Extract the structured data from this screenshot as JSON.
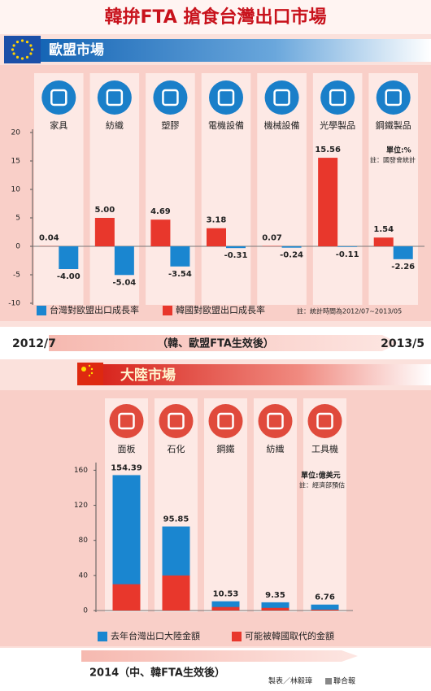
{
  "title": "韓拚FTA  搶食台灣出口市場",
  "chart_data": [
    {
      "type": "grouped_bar",
      "title": "歐盟市場",
      "categories": [
        "家具",
        "紡織",
        "塑膠",
        "電機設備",
        "機械設備",
        "光學製品",
        "鋼鐵製品"
      ],
      "series": [
        {
          "name": "台灣對歐盟出口成長率",
          "color": "#1a86d0",
          "values": [
            -4.0,
            -5.04,
            -3.54,
            -0.31,
            -0.24,
            -0.11,
            -2.26
          ],
          "value_labels": [
            "-4.00",
            "-5.04",
            "-3.54",
            "-0.31",
            "-0.24",
            "-0.11",
            "-2.26"
          ]
        },
        {
          "name": "韓國對歐盟出口成長率",
          "color": "#e8372c",
          "values": [
            0.04,
            5.0,
            4.69,
            3.18,
            0.07,
            15.56,
            1.54
          ],
          "value_labels": [
            "0.04",
            "5.00",
            "4.69",
            "3.18",
            "0.07",
            "15.56",
            "1.54"
          ]
        }
      ],
      "ylim": [
        -10,
        20
      ],
      "yticks": [
        20,
        15,
        10,
        5,
        0,
        -5,
        -10
      ],
      "unit": "單位:%",
      "source": "註：國發會統計",
      "note": "註：統計時間為2012/07~2013/05",
      "period_start": "2012/7",
      "period_label": "（韓、歐盟FTA生效後）",
      "period_end": "2013/5"
    },
    {
      "type": "overlaid_bar",
      "title": "大陸市場",
      "categories": [
        "面板",
        "石化",
        "鋼鐵",
        "紡織",
        "工具機"
      ],
      "series": [
        {
          "name": "去年台灣出口大陸金額",
          "color": "#1a86d0",
          "values": [
            154.39,
            95.85,
            10.53,
            9.35,
            6.76
          ]
        },
        {
          "name": "可能被韓國取代的金額",
          "color": "#e8372c",
          "values": [
            30,
            40,
            4,
            3,
            1
          ]
        }
      ],
      "ylim": [
        0,
        165
      ],
      "yticks": [
        0,
        40,
        80,
        120,
        160
      ],
      "unit": "單位:億美元",
      "source": "註：經濟部預估",
      "period_label": "2014（中、韓FTA生效後）"
    }
  ],
  "credit": "製表／林毅璋",
  "publisher": "聯合報"
}
